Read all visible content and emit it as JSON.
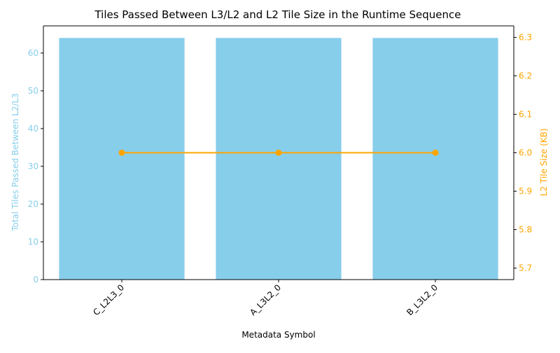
{
  "chart_data": {
    "type": "bar",
    "title": "Tiles Passed Between L3/L2 and L2 Tile Size in the Runtime Sequence",
    "xlabel": "Metadata Symbol",
    "categories": [
      "C_L2L3_0",
      "A_L3L2_0",
      "B_L3L2_0"
    ],
    "series": [
      {
        "type": "bar",
        "axis": "left",
        "values": [
          64,
          64,
          64
        ],
        "color": "#87ceeb"
      },
      {
        "type": "line",
        "axis": "right",
        "values": [
          6.0,
          6.0,
          6.0
        ],
        "color": "#ffa500",
        "marker": "circle"
      }
    ],
    "y_left": {
      "label": "Total Tiles Passed Between L2/L3",
      "ylim": [
        0,
        67.2
      ],
      "ticks": [
        0,
        10,
        20,
        30,
        40,
        50,
        60
      ],
      "tick_labels": [
        "0",
        "10",
        "20",
        "30",
        "40",
        "50",
        "60"
      ],
      "color": "#87ceeb"
    },
    "y_right": {
      "label": "L2 Tile Size (KB)",
      "ylim": [
        5.67,
        6.33
      ],
      "ticks": [
        5.7,
        5.8,
        5.9,
        6.0,
        6.1,
        6.2,
        6.3
      ],
      "tick_labels": [
        "5.7",
        "5.8",
        "5.9",
        "6.0",
        "6.1",
        "6.2",
        "6.3"
      ],
      "color": "#ffa500"
    },
    "grid": false,
    "legend": "none"
  }
}
